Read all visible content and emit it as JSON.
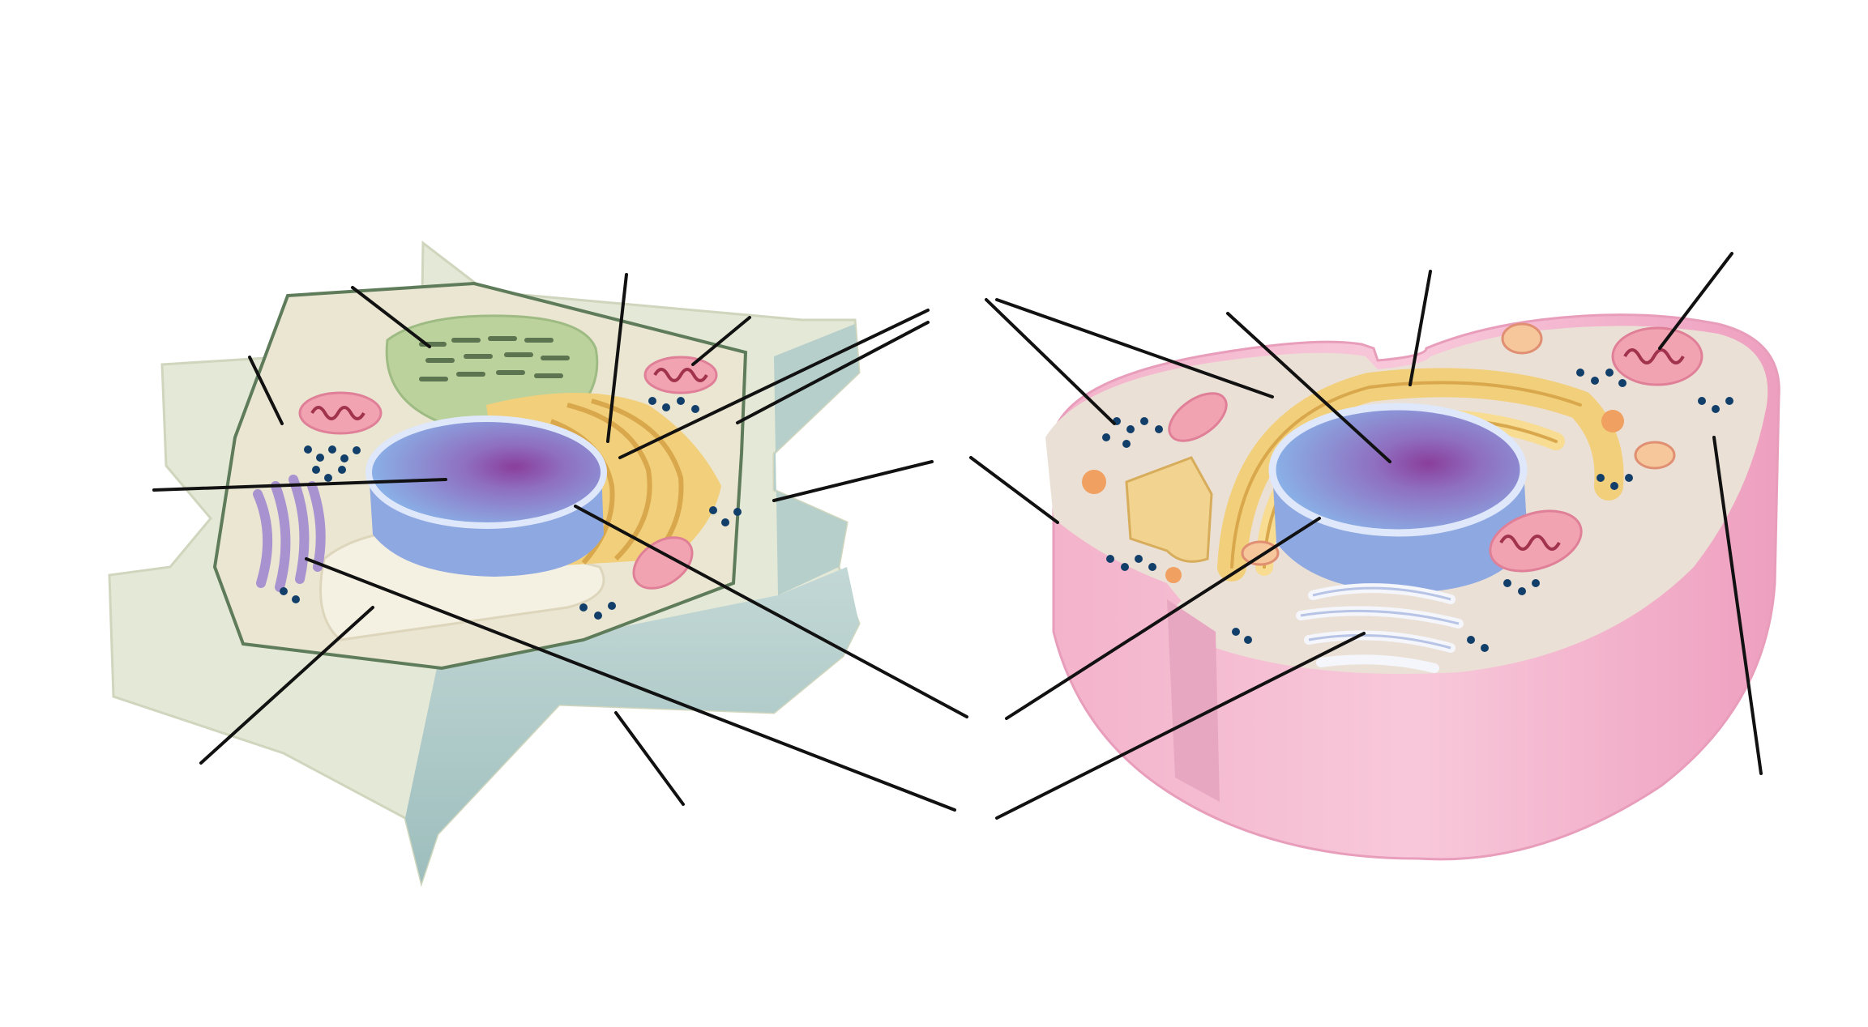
{
  "diagram": {
    "labels": [],
    "panels": [
      {
        "id": "plant-cell",
        "leader_count": 12
      },
      {
        "id": "animal-cell",
        "leader_count": 10
      }
    ],
    "colors": {
      "plant_wall": "#e4e8d6",
      "plant_wall_side": "#aec8c8",
      "plant_cytoplasm": "#ebe6d2",
      "membrane_outline": "#5e7b5a",
      "chloroplast": "#b8cf98",
      "nucleus": "#8ea8e2",
      "nucleolus": "#8a3e9c",
      "rough_er": "#f2cf7a",
      "ribosome": "#123f6a",
      "mitochondrion": "#f2a3b2",
      "golgi": "#a892d0",
      "vacuole": "#f5f1e2",
      "animal_membrane": "#f4b8cf",
      "animal_cytoplasm": "#ebe0d6",
      "lysosome": "#f0a060",
      "leader_line": "#111111"
    }
  }
}
